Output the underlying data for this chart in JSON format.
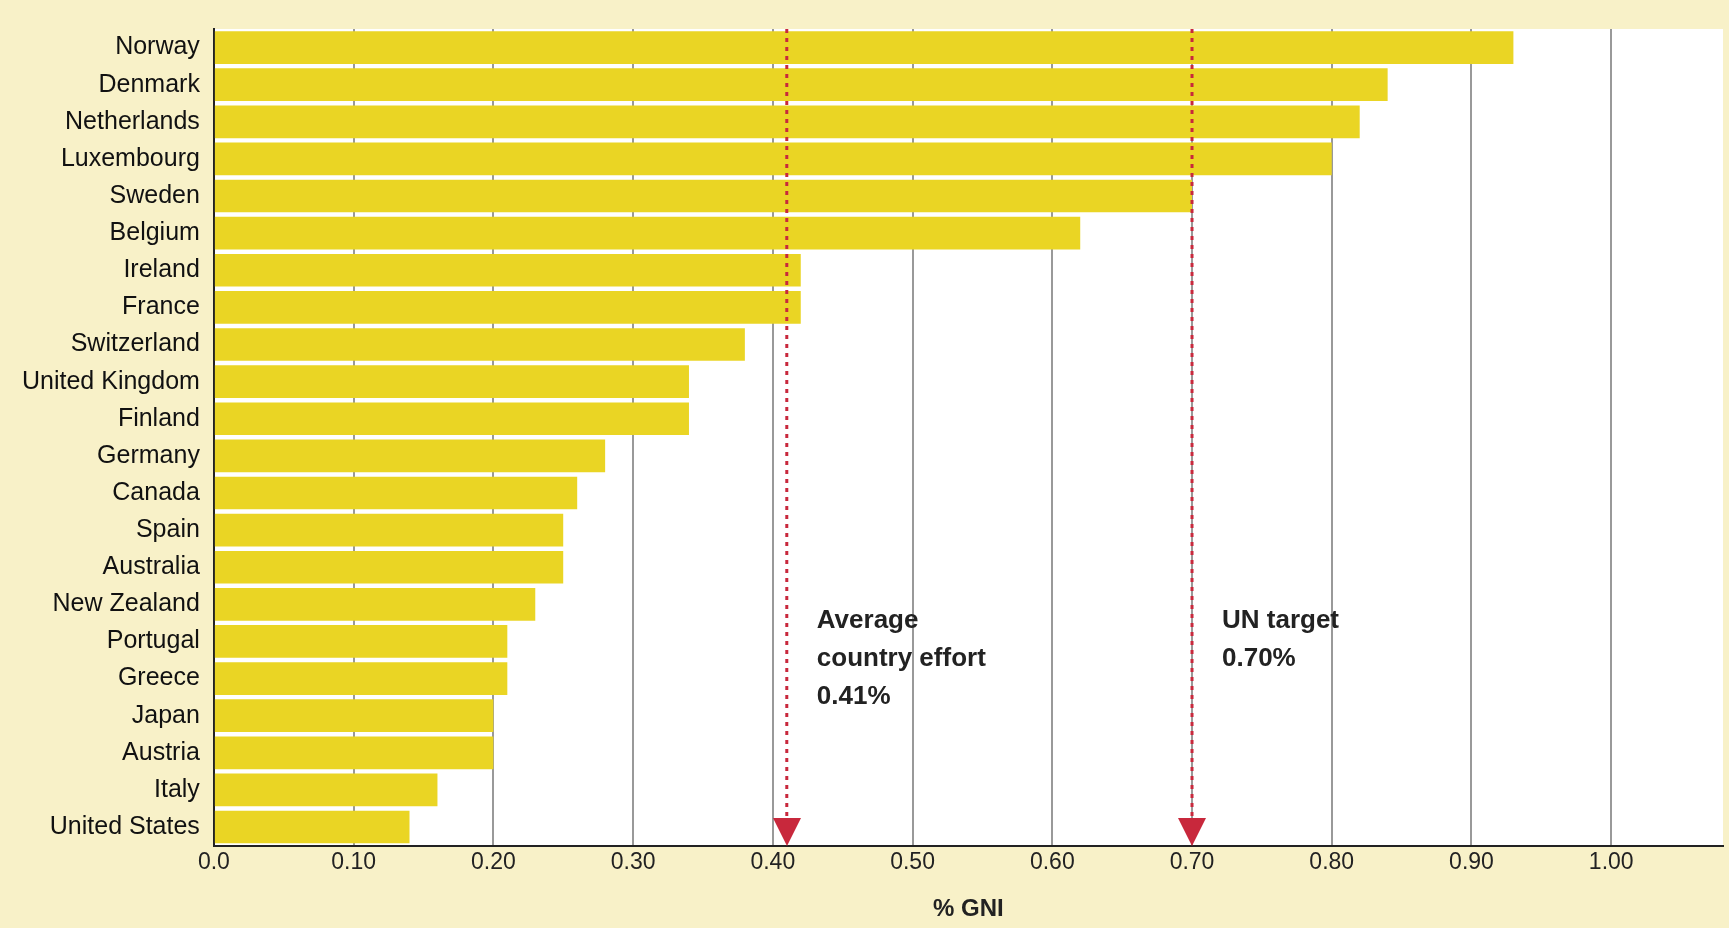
{
  "chart_data": {
    "type": "bar",
    "orientation": "horizontal",
    "xlabel": "% GNI",
    "categories": [
      "Norway",
      "Denmark",
      "Netherlands",
      "Luxembourg",
      "Sweden",
      "Belgium",
      "Ireland",
      "France",
      "Switzerland",
      "United Kingdom",
      "Finland",
      "Germany",
      "Canada",
      "Spain",
      "Australia",
      "New Zealand",
      "Portugal",
      "Greece",
      "Japan",
      "Austria",
      "Italy",
      "United States"
    ],
    "values": [
      0.93,
      0.84,
      0.82,
      0.8,
      0.7,
      0.62,
      0.42,
      0.42,
      0.38,
      0.34,
      0.34,
      0.28,
      0.26,
      0.25,
      0.25,
      0.23,
      0.21,
      0.21,
      0.2,
      0.2,
      0.16,
      0.14
    ],
    "color": "#ead524",
    "xlim": [
      0,
      1.08
    ],
    "xticks": [
      {
        "value": 0,
        "label": "0.0"
      },
      {
        "value": 0.1,
        "label": "0.10"
      },
      {
        "value": 0.2,
        "label": "0.20"
      },
      {
        "value": 0.3,
        "label": "0.30"
      },
      {
        "value": 0.4,
        "label": "0.40"
      },
      {
        "value": 0.5,
        "label": "0.50"
      },
      {
        "value": 0.6,
        "label": "0.60"
      },
      {
        "value": 0.7,
        "label": "0.70"
      },
      {
        "value": 0.8,
        "label": "0.80"
      },
      {
        "value": 0.9,
        "label": "0.90"
      },
      {
        "value": 1,
        "label": "1.00"
      }
    ],
    "grid": "x",
    "legend": false,
    "ref_lines": [
      {
        "axis": "x",
        "value": 0.41,
        "label": "Average country effort 0.41%",
        "color": "#c8283c",
        "line_style": "dotted"
      },
      {
        "axis": "x",
        "value": 0.7,
        "label": "UN target 0.70%",
        "color": "#c8283c",
        "line_style": "dotted"
      }
    ]
  }
}
